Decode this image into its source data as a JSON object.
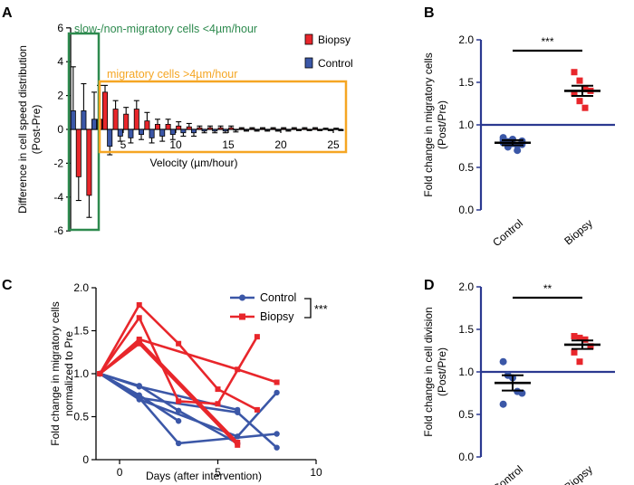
{
  "colors": {
    "red": "#e8262b",
    "blue": "#3b57a7",
    "navy": "#2b3990",
    "green": "#2d8a4e",
    "orange": "#f5a623",
    "black": "#000000"
  },
  "legend_A": {
    "biopsy": "Biopsy",
    "control": "Control"
  },
  "legend_C": {
    "control": "Control",
    "biopsy": "Biopsy",
    "sig": "***"
  },
  "chart_data": [
    {
      "panel": "A",
      "type": "bar",
      "ylabel_line1": "Difference in cell speed distribution",
      "ylabel_line2": "(Post-Pre)",
      "xlabel": "Velocity (µm/hour)",
      "ylim": [
        -6,
        6
      ],
      "yticks": [
        "-6",
        "-4",
        "-2",
        "0",
        "2",
        "4",
        "6"
      ],
      "xlim": [
        0,
        26.5
      ],
      "xticks": [
        "5",
        "10",
        "15",
        "20",
        "25"
      ],
      "box_slow_label": "slow-/non-migratory cells <4µm/hour",
      "box_migratory_label": "migratory cells >4µm/hour",
      "series": [
        {
          "name": "Biopsy",
          "x": [
            0.5,
            1.5,
            2.5,
            3.5,
            4.5,
            5.5,
            6.5,
            7.5,
            8.5,
            9.5,
            10.5,
            11.5,
            12.5,
            13.5,
            14.5,
            15.5,
            16.5,
            17.5,
            18.5,
            19.5,
            20.5,
            21.5,
            22.5,
            23.5,
            24.5,
            25.5
          ],
          "values": [
            -2.8,
            -3.9,
            0.6,
            2.2,
            1.2,
            0.9,
            1.2,
            0.5,
            0.3,
            0.3,
            0.2,
            0.15,
            0.1,
            0.1,
            0.1,
            0.1,
            0.05,
            0.05,
            0.05,
            0.05,
            0.05,
            0.05,
            0.05,
            0.05,
            0.02,
            0.02
          ],
          "err": [
            1.4,
            1.3,
            2.0,
            0.4,
            0.5,
            0.4,
            0.5,
            0.5,
            0.3,
            0.3,
            0.25,
            0.2,
            0.1,
            0.1,
            0.1,
            0.1,
            0.05,
            0.05,
            0.05,
            0.05,
            0.05,
            0.05,
            0.05,
            0.05,
            0.05,
            0.05
          ]
        },
        {
          "name": "Control",
          "x": [
            0.5,
            1.5,
            2.5,
            3.5,
            4.5,
            5.5,
            6.5,
            7.5,
            8.5,
            9.5,
            10.5,
            11.5,
            12.5,
            13.5,
            14.5,
            15.5,
            16.5,
            17.5,
            18.5,
            19.5,
            20.5,
            21.5,
            22.5,
            23.5,
            24.5,
            25.5
          ],
          "values": [
            1.1,
            1.1,
            0.6,
            -1.0,
            -0.4,
            -0.5,
            -0.3,
            -0.5,
            -0.4,
            -0.3,
            -0.2,
            -0.2,
            -0.1,
            -0.1,
            -0.1,
            -0.05,
            -0.05,
            -0.05,
            -0.05,
            -0.05,
            -0.05,
            -0.02,
            -0.02,
            -0.02,
            -0.02,
            -0.02
          ],
          "err": [
            2.6,
            1.6,
            1.6,
            0.5,
            0.3,
            0.3,
            0.3,
            0.3,
            0.3,
            0.3,
            0.2,
            0.2,
            0.1,
            0.1,
            0.1,
            0.1,
            0.05,
            0.05,
            0.05,
            0.05,
            0.05,
            0.05,
            0.05,
            0.05,
            0.05,
            0.05
          ]
        }
      ]
    },
    {
      "panel": "B",
      "type": "scatter",
      "ylabel_line1": "Fold change in migratory cells",
      "ylabel_line2": "(Post/Pre)",
      "categories": [
        "Control",
        "Biopsy"
      ],
      "ylim": [
        0,
        2.0
      ],
      "yticks": [
        "0.0",
        "0.5",
        "1.0",
        "1.5",
        "2.0"
      ],
      "reference_line": 1.0,
      "significance": "***",
      "series": [
        {
          "name": "Control",
          "values": [
            0.82,
            0.8,
            0.78,
            0.76,
            0.81,
            0.79,
            0.74,
            0.83,
            0.7,
            0.77,
            0.85,
            0.8
          ],
          "mean": 0.79,
          "sem": 0.03
        },
        {
          "name": "Biopsy",
          "values": [
            1.62,
            1.52,
            1.42,
            1.4,
            1.37,
            1.28,
            1.2
          ],
          "mean": 1.4,
          "sem": 0.06
        }
      ]
    },
    {
      "panel": "C",
      "type": "line",
      "ylabel_line1": "Fold change in migratory cells",
      "ylabel_line2": "normalized to Pre",
      "xlabel": "Days (after intervention)",
      "xlim": [
        -1.2,
        10
      ],
      "ylim": [
        0,
        2.0
      ],
      "xticks": [
        "0",
        "5",
        "10"
      ],
      "yticks": [
        "0",
        "0.5",
        "1.0",
        "1.5",
        "2.0"
      ],
      "series": [
        {
          "name": "Control",
          "subject": 1,
          "x": [
            -1,
            1,
            6
          ],
          "y": [
            1.0,
            0.85,
            0.58
          ]
        },
        {
          "name": "Control",
          "subject": 2,
          "x": [
            -1,
            1,
            3
          ],
          "y": [
            1.0,
            0.75,
            0.45
          ]
        },
        {
          "name": "Control",
          "subject": 3,
          "x": [
            -1,
            1,
            6,
            8
          ],
          "y": [
            1.0,
            0.7,
            0.27,
            0.78
          ]
        },
        {
          "name": "Control",
          "subject": 4,
          "x": [
            -1,
            1,
            3,
            6
          ],
          "y": [
            1.0,
            0.86,
            0.57,
            0.19
          ]
        },
        {
          "name": "Control",
          "subject": 5,
          "x": [
            -1,
            1,
            3,
            8
          ],
          "y": [
            1.0,
            0.72,
            0.19,
            0.3
          ]
        },
        {
          "name": "Control",
          "subject": 6,
          "x": [
            -1,
            1,
            6,
            8
          ],
          "y": [
            1.0,
            0.72,
            0.55,
            0.14
          ]
        },
        {
          "name": "Biopsy",
          "subject": 1,
          "x": [
            -1,
            1,
            3,
            5,
            7
          ],
          "y": [
            1.0,
            1.8,
            1.35,
            0.82,
            0.58
          ]
        },
        {
          "name": "Biopsy",
          "subject": 2,
          "x": [
            -1,
            1,
            3,
            5,
            7
          ],
          "y": [
            1.0,
            1.65,
            0.68,
            0.65,
            1.43
          ]
        },
        {
          "name": "Biopsy",
          "subject": 3,
          "x": [
            -1,
            1,
            6,
            8
          ],
          "y": [
            1.0,
            1.4,
            1.05,
            0.9
          ]
        },
        {
          "name": "Biopsy",
          "subject": 4,
          "x": [
            -1,
            1,
            6
          ],
          "y": [
            1.0,
            1.35,
            0.17
          ]
        },
        {
          "name": "Biopsy",
          "subject": 5,
          "x": [
            -1,
            1,
            6
          ],
          "y": [
            1.0,
            1.38,
            0.2
          ]
        }
      ]
    },
    {
      "panel": "D",
      "type": "scatter",
      "ylabel_line1": "Fold change in cell division",
      "ylabel_line2": "(Post/Pre)",
      "categories": [
        "Control",
        "Biopsy"
      ],
      "ylim": [
        0,
        2.0
      ],
      "yticks": [
        "0.0",
        "0.5",
        "1.0",
        "1.5",
        "2.0"
      ],
      "reference_line": 1.0,
      "significance": "**",
      "series": [
        {
          "name": "Control",
          "values": [
            1.12,
            0.96,
            0.93,
            0.77,
            0.75,
            0.62
          ],
          "mean": 0.87,
          "sem": 0.09
        },
        {
          "name": "Biopsy",
          "values": [
            1.42,
            1.4,
            1.38,
            1.3,
            1.23,
            1.12
          ],
          "mean": 1.32,
          "sem": 0.05
        }
      ]
    }
  ]
}
